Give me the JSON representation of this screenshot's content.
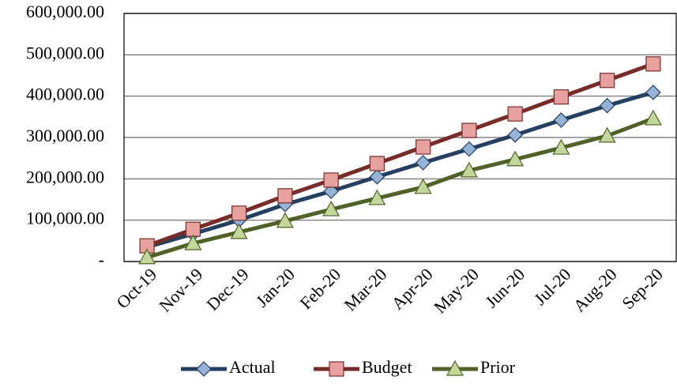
{
  "chart_data": {
    "type": "line",
    "categories": [
      "Oct-19",
      "Nov-19",
      "Dec-19",
      "Jan-20",
      "Feb-20",
      "Mar-20",
      "Apr-20",
      "May-20",
      "Jun-20",
      "Jul-20",
      "Aug-20",
      "Sep-20"
    ],
    "series": [
      {
        "name": "Actual",
        "color": "#243f60",
        "marker": "diamond",
        "marker_color": "#95b3d7",
        "values": [
          35000,
          67000,
          100000,
          138000,
          170000,
          205000,
          239000,
          272000,
          306000,
          342000,
          377000,
          409000
        ]
      },
      {
        "name": "Budget",
        "color": "#772c2a",
        "marker": "square",
        "marker_color": "#e6a09e",
        "values": [
          38000,
          78000,
          117000,
          159000,
          197000,
          237000,
          277000,
          317000,
          357000,
          398000,
          438000,
          478000
        ]
      },
      {
        "name": "Prior",
        "color": "#4f6228",
        "marker": "triangle",
        "marker_color": "#c3d69b",
        "values": [
          10000,
          44000,
          71000,
          98000,
          126000,
          153000,
          180000,
          220000,
          247000,
          275000,
          304000,
          346000
        ]
      }
    ],
    "ylim": [
      0,
      600000
    ],
    "yticks": [
      {
        "value": 0,
        "label": "-"
      },
      {
        "value": 100000,
        "label": "100,000.00"
      },
      {
        "value": 200000,
        "label": "200,000.00"
      },
      {
        "value": 300000,
        "label": "300,000.00"
      },
      {
        "value": 400000,
        "label": "400,000.00"
      },
      {
        "value": 500000,
        "label": "500,000.00"
      },
      {
        "value": 600000,
        "label": "600,000.00"
      }
    ],
    "grid": true,
    "legend": "bottom"
  }
}
